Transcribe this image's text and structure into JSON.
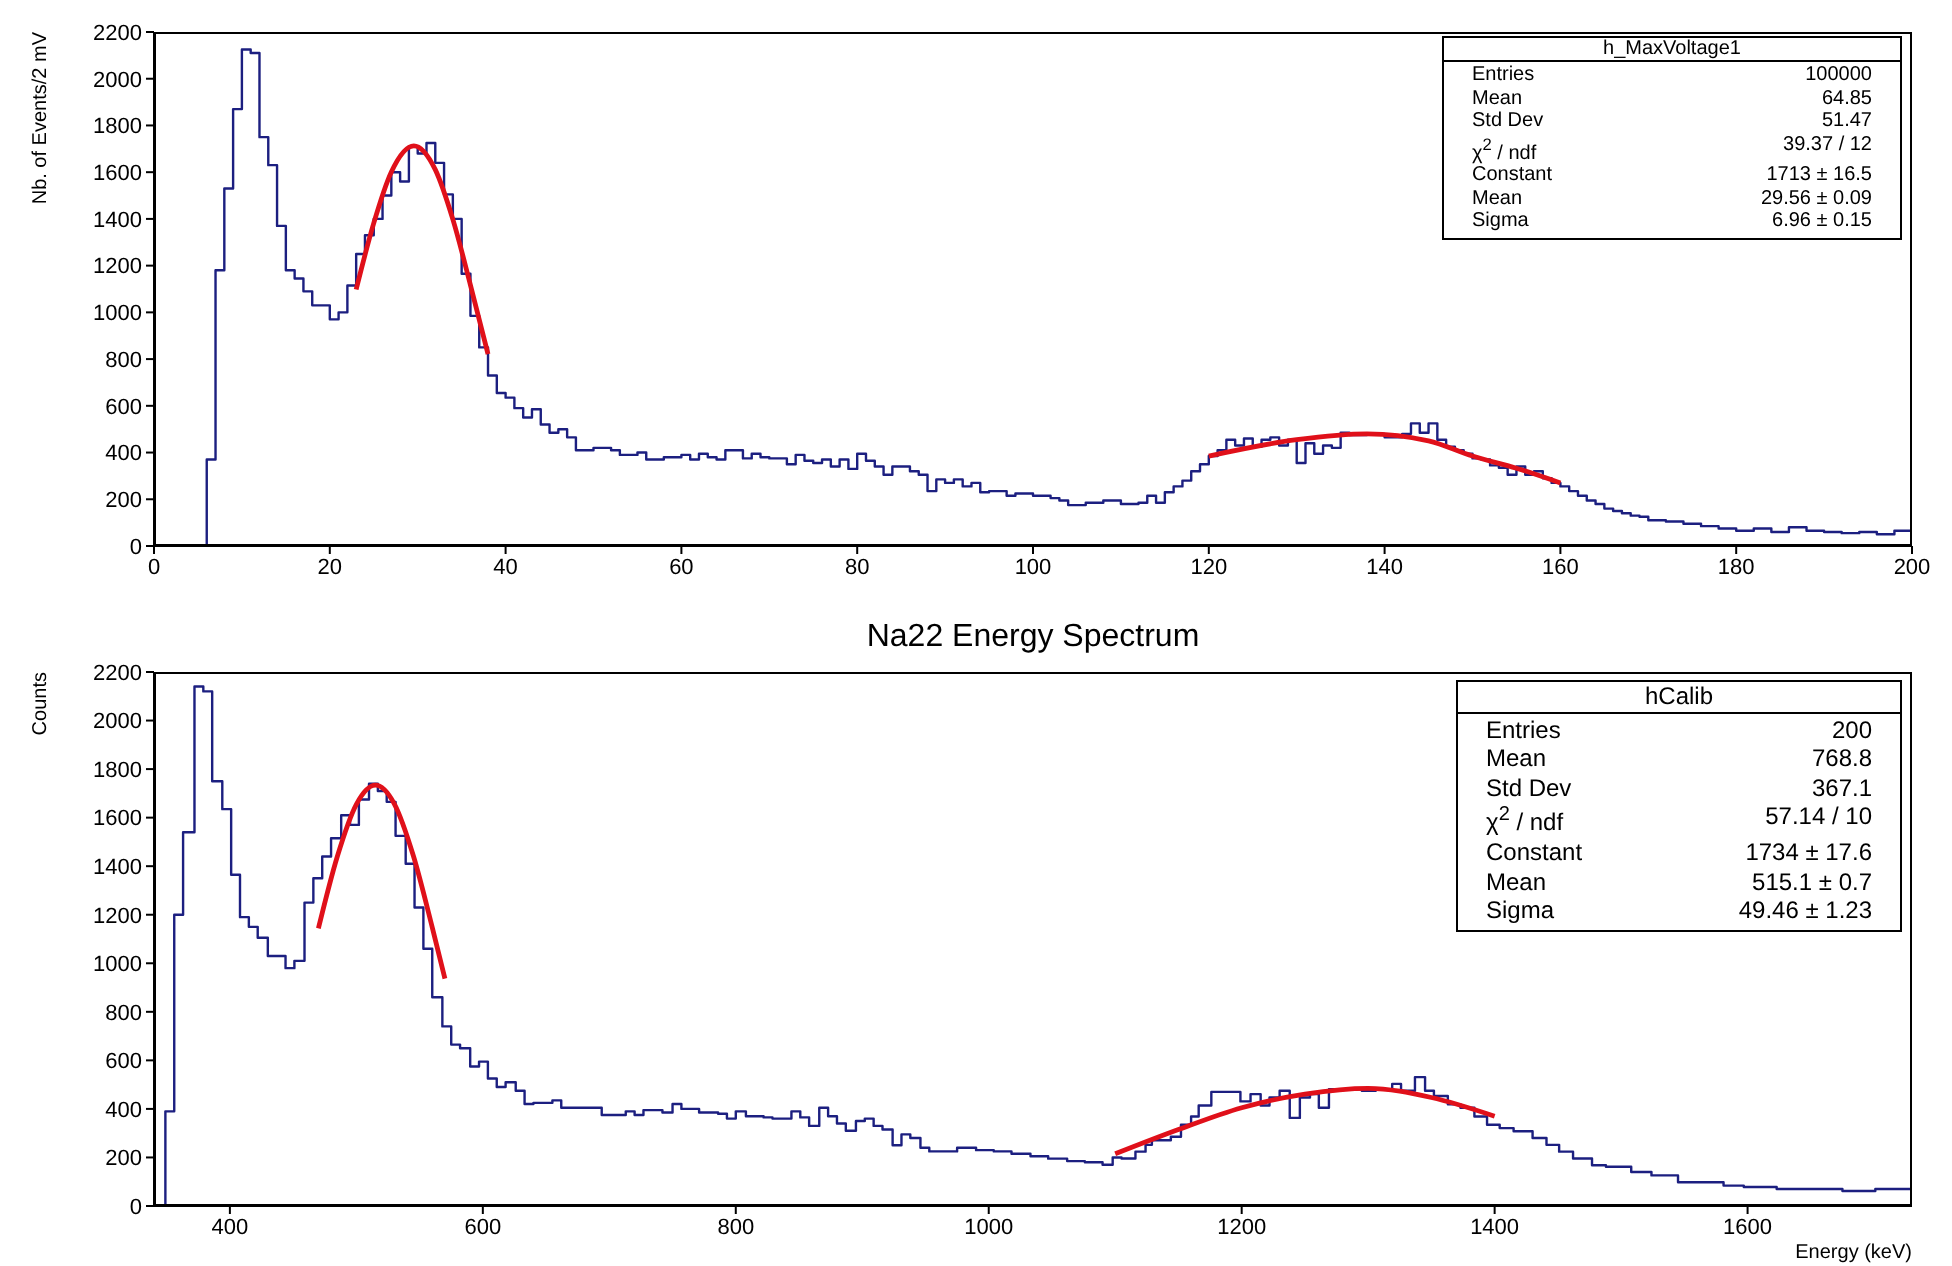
{
  "chart_data": [
    {
      "type": "histogram",
      "ylabel": "Nb. of Events/2 mV",
      "color": "#1c1f80",
      "xlim": [
        0,
        200
      ],
      "xticks": [
        0,
        20,
        40,
        60,
        80,
        100,
        120,
        140,
        160,
        180,
        200
      ],
      "ylim": [
        0,
        2200
      ],
      "yticks": [
        0,
        200,
        400,
        600,
        800,
        1000,
        1200,
        1400,
        1600,
        1800,
        2000,
        2200
      ],
      "bins": [
        0,
        6,
        7,
        8,
        9,
        10,
        11,
        12,
        13,
        14,
        15,
        16,
        17,
        18,
        20,
        21,
        22,
        23,
        24,
        25,
        26,
        27,
        28,
        29,
        30,
        31,
        32,
        33,
        34,
        35,
        36,
        37,
        38,
        39,
        40,
        41,
        42,
        43,
        44,
        45,
        46,
        47,
        48,
        50,
        52,
        53,
        55,
        56,
        58,
        60,
        61,
        62,
        63,
        64,
        65,
        67,
        68,
        69,
        70,
        72,
        73,
        74,
        75,
        76,
        77,
        78,
        79,
        80,
        81,
        82,
        83,
        84,
        86,
        87,
        88,
        89,
        90,
        91,
        92,
        93,
        94,
        95,
        97,
        98,
        100,
        102,
        103,
        104,
        106,
        108,
        110,
        112,
        113,
        114,
        115,
        116,
        117,
        118,
        119,
        120,
        121,
        122,
        123,
        124,
        125,
        126,
        127,
        128,
        129,
        130,
        131,
        132,
        133,
        134,
        135,
        136,
        138,
        140,
        142,
        143,
        144,
        145,
        146,
        147,
        148,
        149,
        150,
        151,
        152,
        153,
        154,
        155,
        156,
        157,
        158,
        159,
        160,
        161,
        162,
        163,
        164,
        165,
        166,
        167,
        168,
        169,
        170,
        172,
        174,
        176,
        178,
        180,
        182,
        184,
        186,
        188,
        190,
        192,
        194,
        196,
        198,
        200
      ],
      "values": [
        0,
        370,
        1180,
        1530,
        1870,
        2125,
        2110,
        1750,
        1630,
        1370,
        1180,
        1145,
        1090,
        1030,
        970,
        1000,
        1115,
        1250,
        1330,
        1400,
        1500,
        1600,
        1560,
        1710,
        1680,
        1725,
        1640,
        1505,
        1400,
        1165,
        985,
        850,
        730,
        655,
        635,
        590,
        550,
        585,
        520,
        485,
        500,
        465,
        410,
        420,
        410,
        390,
        400,
        370,
        380,
        390,
        370,
        395,
        380,
        370,
        410,
        375,
        395,
        380,
        375,
        350,
        390,
        365,
        355,
        370,
        340,
        370,
        330,
        395,
        365,
        340,
        305,
        340,
        320,
        305,
        235,
        285,
        270,
        285,
        255,
        270,
        230,
        235,
        215,
        225,
        215,
        205,
        195,
        175,
        185,
        195,
        180,
        185,
        215,
        185,
        230,
        255,
        280,
        320,
        350,
        385,
        410,
        455,
        430,
        460,
        425,
        455,
        465,
        430,
        455,
        355,
        440,
        395,
        430,
        420,
        485,
        475,
        480,
        465,
        480,
        525,
        485,
        525,
        455,
        425,
        410,
        395,
        375,
        370,
        345,
        335,
        305,
        340,
        305,
        320,
        290,
        270,
        255,
        235,
        215,
        195,
        180,
        160,
        150,
        140,
        130,
        125,
        110,
        105,
        95,
        85,
        75,
        65,
        75,
        60,
        80,
        65,
        60,
        55,
        60,
        50,
        65
      ],
      "series": [
        {
          "type": "line",
          "color": "#e0101a",
          "x": [
            23,
            25,
            27,
            29.56,
            32,
            34,
            36,
            38
          ],
          "values": [
            1098,
            1382,
            1601,
            1713,
            1611,
            1398,
            1117,
            821
          ]
        },
        {
          "type": "line",
          "color": "#e0101a",
          "x": [
            120,
            130,
            138,
            145,
            150,
            155,
            160
          ],
          "values": [
            385,
            455,
            480,
            450,
            385,
            333,
            270
          ]
        }
      ],
      "annotations": [
        "h_MaxVoltage1",
        "Entries",
        "100000",
        "Mean",
        "64.85",
        "Std Dev",
        "51.47",
        "χ$^{2}$ / ndf",
        "39.37 / 12",
        "Constant",
        "1713 ± 16.5",
        "Mean",
        "29.56 ± 0.09",
        "Sigma",
        "6.96 ± 0.15"
      ]
    },
    {
      "type": "histogram",
      "title": "Na22 Energy Spectrum",
      "xlabel": "Energy (keV)",
      "ylabel": "Counts",
      "color": "#1c1f80",
      "xlim": [
        340,
        1730
      ],
      "xticks": [
        400,
        600,
        800,
        1000,
        1200,
        1400,
        1600
      ],
      "ylim": [
        0,
        2200
      ],
      "yticks": [
        0,
        200,
        400,
        600,
        800,
        1000,
        1200,
        1400,
        1600,
        1800,
        2000,
        2200
      ],
      "bins": [
        340,
        349,
        356,
        363,
        372,
        379,
        386,
        394,
        401,
        408,
        415,
        422,
        430,
        444,
        451,
        459,
        466,
        473,
        480,
        488,
        495,
        502,
        510,
        517,
        524,
        531,
        539,
        546,
        553,
        560,
        568,
        575,
        582,
        590,
        597,
        604,
        611,
        618,
        626,
        633,
        640,
        655,
        662,
        694,
        713,
        720,
        727,
        742,
        750,
        757,
        771,
        786,
        793,
        800,
        808,
        822,
        829,
        844,
        851,
        858,
        866,
        873,
        880,
        887,
        895,
        902,
        909,
        916,
        924,
        931,
        938,
        946,
        953,
        975,
        990,
        1004,
        1018,
        1033,
        1047,
        1062,
        1076,
        1090,
        1098,
        1105,
        1116,
        1124,
        1129,
        1144,
        1152,
        1160,
        1166,
        1176,
        1199,
        1207,
        1215,
        1222,
        1230,
        1238,
        1246,
        1254,
        1261,
        1269,
        1295,
        1306,
        1319,
        1326,
        1337,
        1345,
        1352,
        1363,
        1373,
        1384,
        1394,
        1404,
        1415,
        1430,
        1441,
        1451,
        1462,
        1477,
        1488,
        1508,
        1524,
        1545,
        1560,
        1581,
        1597,
        1623,
        1675,
        1701,
        1730
      ],
      "values": [
        0,
        390,
        1200,
        1540,
        2140,
        2120,
        1750,
        1635,
        1365,
        1190,
        1150,
        1105,
        1030,
        980,
        1010,
        1250,
        1350,
        1440,
        1515,
        1610,
        1570,
        1675,
        1740,
        1710,
        1665,
        1525,
        1410,
        1230,
        1060,
        860,
        740,
        665,
        650,
        575,
        595,
        525,
        490,
        510,
        475,
        420,
        425,
        435,
        405,
        375,
        390,
        375,
        395,
        385,
        420,
        400,
        385,
        380,
        360,
        390,
        370,
        365,
        360,
        390,
        365,
        330,
        405,
        370,
        340,
        310,
        350,
        360,
        330,
        315,
        250,
        295,
        280,
        240,
        225,
        240,
        230,
        225,
        215,
        205,
        195,
        185,
        180,
        170,
        200,
        196,
        224,
        252,
        271,
        285,
        335,
        369,
        414,
        470,
        431,
        461,
        414,
        447,
        475,
        363,
        447,
        461,
        405,
        481,
        475,
        481,
        503,
        475,
        531,
        475,
        453,
        419,
        405,
        369,
        335,
        321,
        308,
        280,
        252,
        224,
        196,
        168,
        162,
        140,
        126,
        98,
        98,
        84,
        78,
        70,
        62,
        70
      ],
      "series": [
        {
          "type": "line",
          "color": "#e0101a",
          "x": [
            470,
            485,
            500,
            515.1,
            530,
            545,
            560,
            570
          ],
          "values": [
            1144,
            1441,
            1655,
            1734,
            1657,
            1444,
            1148,
            937
          ]
        },
        {
          "type": "line",
          "color": "#e0101a",
          "x": [
            1100,
            1150,
            1200,
            1250,
            1300,
            1350,
            1400
          ],
          "values": [
            215,
            315,
            405,
            461,
            485,
            447,
            370
          ]
        }
      ],
      "annotations": [
        "hCalib",
        "Entries",
        "200",
        "Mean",
        "768.8",
        "Std Dev",
        "367.1",
        "χ$^{2}$ / ndf",
        "57.14 / 10",
        "Constant",
        "1734 ± 17.6",
        "Mean",
        "515.1 ± 0.7",
        "Sigma",
        "49.46 ± 1.23"
      ]
    }
  ]
}
